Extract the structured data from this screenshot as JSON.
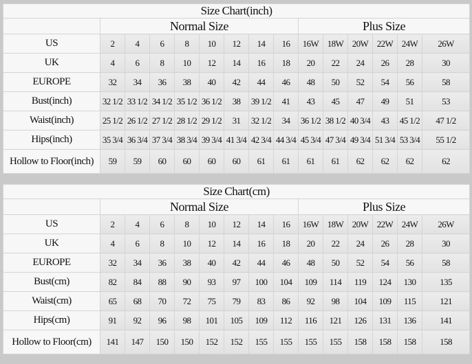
{
  "colors": {
    "background": "#c9c9c9",
    "cell": "#e6e6e6",
    "header": "#f7f7f7"
  },
  "charts": [
    {
      "id": "inch",
      "title": "Size Chart(inch)",
      "normal_label": "Normal Size",
      "plus_label": "Plus Size",
      "rows": [
        {
          "label": "US",
          "values": [
            "2",
            "4",
            "6",
            "8",
            "10",
            "12",
            "14",
            "16",
            "16W",
            "18W",
            "20W",
            "22W",
            "24W",
            "26W"
          ]
        },
        {
          "label": "UK",
          "values": [
            "4",
            "6",
            "8",
            "10",
            "12",
            "14",
            "16",
            "18",
            "20",
            "22",
            "24",
            "26",
            "28",
            "30"
          ]
        },
        {
          "label": "EUROPE",
          "values": [
            "32",
            "34",
            "36",
            "38",
            "40",
            "42",
            "44",
            "46",
            "48",
            "50",
            "52",
            "54",
            "56",
            "58"
          ]
        },
        {
          "label": "Bust(inch)",
          "values": [
            "32 1/2",
            "33 1/2",
            "34 1/2",
            "35 1/2",
            "36 1/2",
            "38",
            "39 1/2",
            "41",
            "43",
            "45",
            "47",
            "49",
            "51",
            "53"
          ]
        },
        {
          "label": "Waist(inch)",
          "values": [
            "25 1/2",
            "26 1/2",
            "27 1/2",
            "28 1/2",
            "29 1/2",
            "31",
            "32 1/2",
            "34",
            "36 1/2",
            "38 1/2",
            "40 3/4",
            "43",
            "45 1/2",
            "47 1/2"
          ]
        },
        {
          "label": "Hips(inch)",
          "values": [
            "35 3/4",
            "36 3/4",
            "37 3/4",
            "38 3/4",
            "39 3/4",
            "41 3/4",
            "42 3/4",
            "44 3/4",
            "45 3/4",
            "47 3/4",
            "49 3/4",
            "51 3/4",
            "53 3/4",
            "55 1/2"
          ]
        },
        {
          "label": "Hollow to Floor(inch)",
          "values": [
            "59",
            "59",
            "60",
            "60",
            "60",
            "60",
            "61",
            "61",
            "61",
            "61",
            "62",
            "62",
            "62",
            "62"
          ]
        }
      ]
    },
    {
      "id": "cm",
      "title": "Size Chart(cm)",
      "normal_label": "Normal Size",
      "plus_label": "Plus Size",
      "rows": [
        {
          "label": "US",
          "values": [
            "2",
            "4",
            "6",
            "8",
            "10",
            "12",
            "14",
            "16",
            "16W",
            "18W",
            "20W",
            "22W",
            "24W",
            "26W"
          ]
        },
        {
          "label": "UK",
          "values": [
            "4",
            "6",
            "8",
            "10",
            "12",
            "14",
            "16",
            "18",
            "20",
            "22",
            "24",
            "26",
            "28",
            "30"
          ]
        },
        {
          "label": "EUROPE",
          "values": [
            "32",
            "34",
            "36",
            "38",
            "40",
            "42",
            "44",
            "46",
            "48",
            "50",
            "52",
            "54",
            "56",
            "58"
          ]
        },
        {
          "label": "Bust(cm)",
          "values": [
            "82",
            "84",
            "88",
            "90",
            "93",
            "97",
            "100",
            "104",
            "109",
            "114",
            "119",
            "124",
            "130",
            "135"
          ]
        },
        {
          "label": "Waist(cm)",
          "values": [
            "65",
            "68",
            "70",
            "72",
            "75",
            "79",
            "83",
            "86",
            "92",
            "98",
            "104",
            "109",
            "115",
            "121"
          ]
        },
        {
          "label": "Hips(cm)",
          "values": [
            "91",
            "92",
            "96",
            "98",
            "101",
            "105",
            "109",
            "112",
            "116",
            "121",
            "126",
            "131",
            "136",
            "141"
          ]
        },
        {
          "label": "Hollow to Floor(cm)",
          "values": [
            "141",
            "147",
            "150",
            "150",
            "152",
            "152",
            "155",
            "155",
            "155",
            "155",
            "158",
            "158",
            "158",
            "158"
          ]
        }
      ]
    }
  ]
}
